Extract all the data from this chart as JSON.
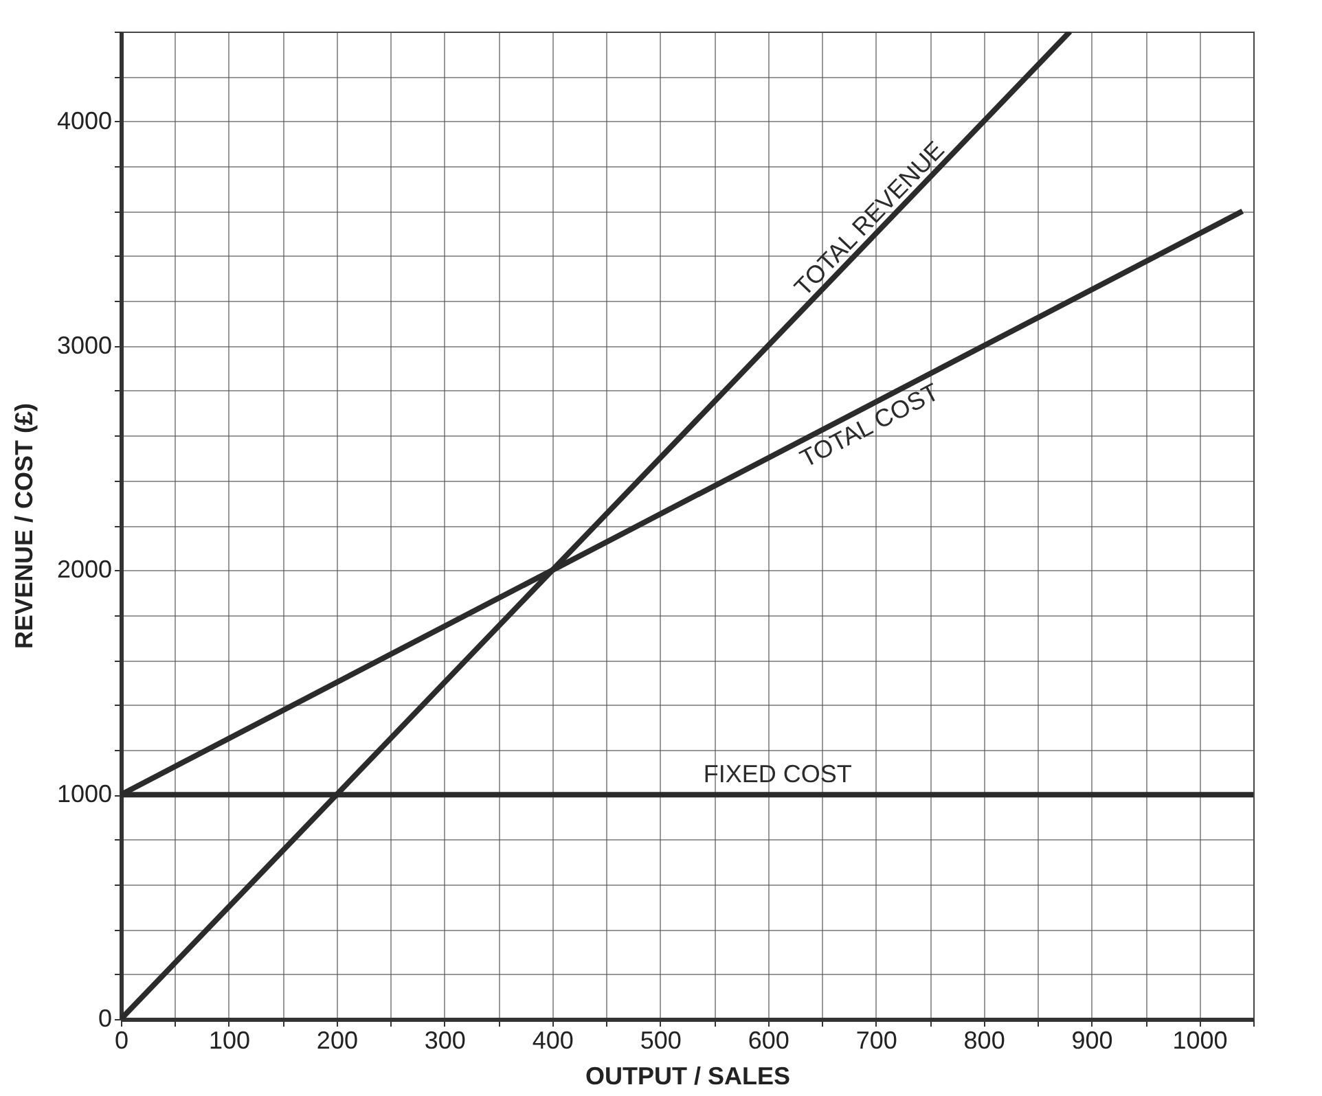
{
  "chart_data": {
    "type": "line",
    "xlabel": "OUTPUT / SALES",
    "ylabel": "REVENUE / COST (£)",
    "xlim": [
      0,
      1050
    ],
    "ylim": [
      0,
      4400
    ],
    "xticks": [
      0,
      {
        "value": 50,
        "label": null
      },
      100,
      {
        "value": 150,
        "label": null
      },
      200,
      {
        "value": 250,
        "label": null
      },
      300,
      {
        "value": 350,
        "label": null
      },
      400,
      {
        "value": 450,
        "label": null
      },
      500,
      {
        "value": 550,
        "label": null
      },
      600,
      {
        "value": 650,
        "label": null
      },
      700,
      {
        "value": 750,
        "label": null
      },
      800,
      {
        "value": 850,
        "label": null
      },
      900,
      {
        "value": 950,
        "label": null
      },
      1000,
      {
        "value": 1050,
        "label": null
      }
    ],
    "yticks": [
      0,
      {
        "value": 200,
        "label": null
      },
      {
        "value": 400,
        "label": null
      },
      {
        "value": 600,
        "label": null
      },
      {
        "value": 800,
        "label": null
      },
      1000,
      {
        "value": 1200,
        "label": null
      },
      {
        "value": 1400,
        "label": null
      },
      {
        "value": 1600,
        "label": null
      },
      {
        "value": 1800,
        "label": null
      },
      2000,
      {
        "value": 2200,
        "label": null
      },
      {
        "value": 2400,
        "label": null
      },
      {
        "value": 2600,
        "label": null
      },
      {
        "value": 2800,
        "label": null
      },
      3000,
      {
        "value": 3200,
        "label": null
      },
      {
        "value": 3400,
        "label": null
      },
      {
        "value": 3600,
        "label": null
      },
      {
        "value": 3800,
        "label": null
      },
      4000,
      {
        "value": 4200,
        "label": null
      },
      {
        "value": 4400,
        "label": null
      }
    ],
    "grid": true,
    "series": [
      {
        "name": "TOTAL REVENUE",
        "color": "#2b2b2b",
        "x": [
          0,
          880
        ],
        "values": [
          0,
          4400
        ]
      },
      {
        "name": "TOTAL COST",
        "color": "#2b2b2b",
        "x": [
          0,
          1040
        ],
        "values": [
          1000,
          3600
        ]
      },
      {
        "name": "FIXED COST",
        "color": "#2b2b2b",
        "x": [
          0,
          1050
        ],
        "values": [
          1000,
          1000
        ]
      }
    ]
  }
}
